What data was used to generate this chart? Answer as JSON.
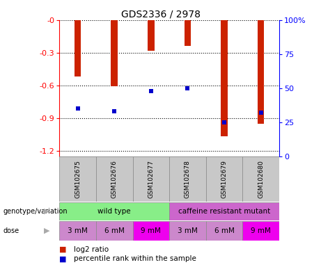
{
  "title": "GDS2336 / 2978",
  "samples": [
    "GSM102675",
    "GSM102676",
    "GSM102677",
    "GSM102678",
    "GSM102679",
    "GSM102680"
  ],
  "log2_ratio": [
    -0.52,
    -0.61,
    -0.28,
    -0.24,
    -1.07,
    -0.95
  ],
  "percentile_rank": [
    35,
    33,
    48,
    50,
    25,
    32
  ],
  "ylim_left": [
    -1.25,
    0.0
  ],
  "ylim_right": [
    0,
    100
  ],
  "yticks_left": [
    0.0,
    -0.3,
    -0.6,
    -0.9,
    -1.2
  ],
  "yticks_right": [
    0,
    25,
    50,
    75,
    100
  ],
  "dose_labels": [
    "3 mM",
    "6 mM",
    "9 mM",
    "3 mM",
    "6 mM",
    "9 mM"
  ],
  "dose_colors": [
    "#CC88CC",
    "#CC88CC",
    "#EE00EE",
    "#CC88CC",
    "#CC88CC",
    "#EE00EE"
  ],
  "bar_color": "#CC2200",
  "percentile_color": "#0000CC",
  "bar_width": 0.18,
  "background_color": "#FFFFFF",
  "legend_log2_label": "log2 ratio",
  "legend_percentile_label": "percentile rank within the sample",
  "genotype_label": "genotype/variation",
  "dose_label": "dose",
  "wt_color": "#88EE88",
  "mutant_color": "#CC66CC",
  "sample_bg_color": "#C8C8C8",
  "grid_color": "#000000"
}
